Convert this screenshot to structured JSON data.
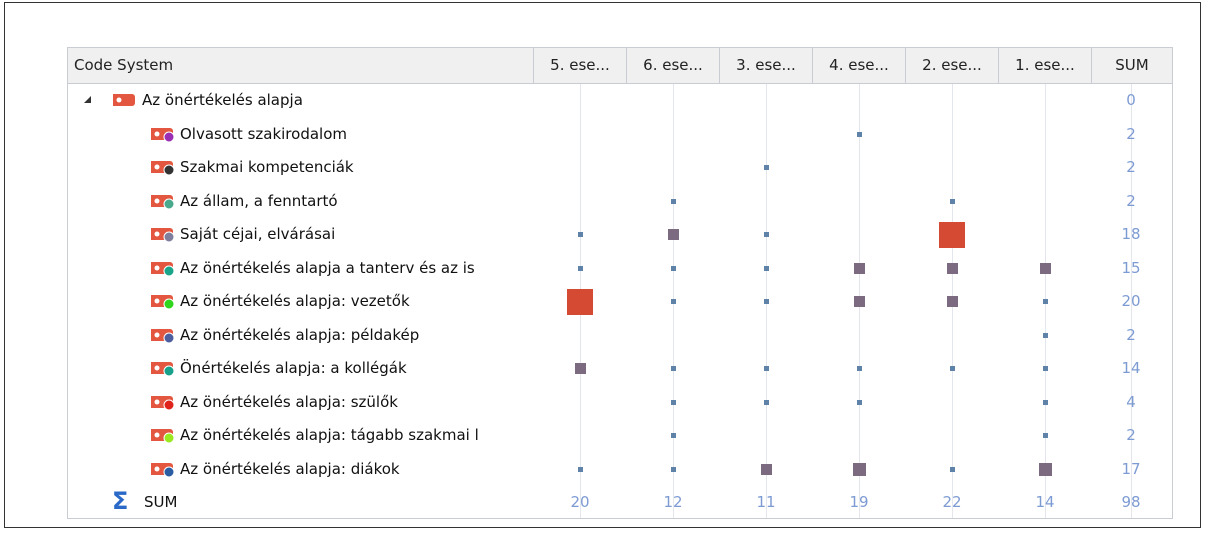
{
  "header": {
    "code_system": "Code System",
    "columns": [
      "5. ese...",
      "6. ese...",
      "3. ese...",
      "4. ese...",
      "2. ese...",
      "1. ese..."
    ],
    "sum": "SUM"
  },
  "colors": {
    "accent": "#2a69c7",
    "number": "#7d9bd3",
    "large_square": "#d54a33",
    "medium_square": "#7c6b80",
    "small_square": "#5f82a8",
    "code_icon": "#e3563f"
  },
  "rows": [
    {
      "label": "Az önértékelés alapja",
      "sum": "0",
      "dot": "",
      "sizes": [
        0,
        0,
        0,
        0,
        0,
        0
      ],
      "parent": true
    },
    {
      "label": "Olvasott szakirodalom",
      "sum": "2",
      "dot": "#9b2fb3",
      "sizes": [
        0,
        0,
        0,
        1,
        0,
        0
      ]
    },
    {
      "label": "Szakmai kompetenciák",
      "sum": "2",
      "dot": "#333333",
      "sizes": [
        0,
        0,
        1,
        0,
        0,
        0
      ]
    },
    {
      "label": "Az állam, a fenntartó",
      "sum": "2",
      "dot": "#4aa88d",
      "sizes": [
        0,
        1,
        0,
        0,
        1,
        0
      ]
    },
    {
      "label": "Saját céjai, elvárásai",
      "sum": "18",
      "dot": "#7f7f9d",
      "sizes": [
        1,
        2,
        1,
        0,
        4,
        0
      ]
    },
    {
      "label": "Az önértékelés alapja a tanterv és az is",
      "sum": "15",
      "dot": "#1aa48a",
      "sizes": [
        1,
        1,
        1,
        2,
        2,
        2
      ]
    },
    {
      "label": "Az önértékelés alapja: vezetők",
      "sum": "20",
      "dot": "#2fd61d",
      "sizes": [
        4,
        1,
        1,
        2,
        2,
        1
      ]
    },
    {
      "label": "Az önértékelés alapja: példakép",
      "sum": "2",
      "dot": "#4c5e9e",
      "sizes": [
        0,
        0,
        0,
        0,
        0,
        1
      ]
    },
    {
      "label": "Önértékelés alapja: a kollégák",
      "sum": "14",
      "dot": "#17a08a",
      "sizes": [
        2,
        1,
        1,
        1,
        1,
        1
      ]
    },
    {
      "label": "Az önértékelés alapja: szülők",
      "sum": "4",
      "dot": "#e0231a",
      "sizes": [
        0,
        1,
        1,
        1,
        0,
        1
      ]
    },
    {
      "label": "Az önértékelés alapja: tágabb szakmai l",
      "sum": "2",
      "dot": "#9ae81f",
      "sizes": [
        0,
        1,
        0,
        0,
        0,
        1
      ]
    },
    {
      "label": "Az önértékelés alapja: diákok",
      "sum": "17",
      "dot": "#2b5da3",
      "sizes": [
        1,
        1,
        2,
        3,
        1,
        3
      ]
    }
  ],
  "sum_row": {
    "label": "SUM",
    "values": [
      "20",
      "12",
      "11",
      "19",
      "22",
      "14"
    ],
    "total": "98"
  }
}
